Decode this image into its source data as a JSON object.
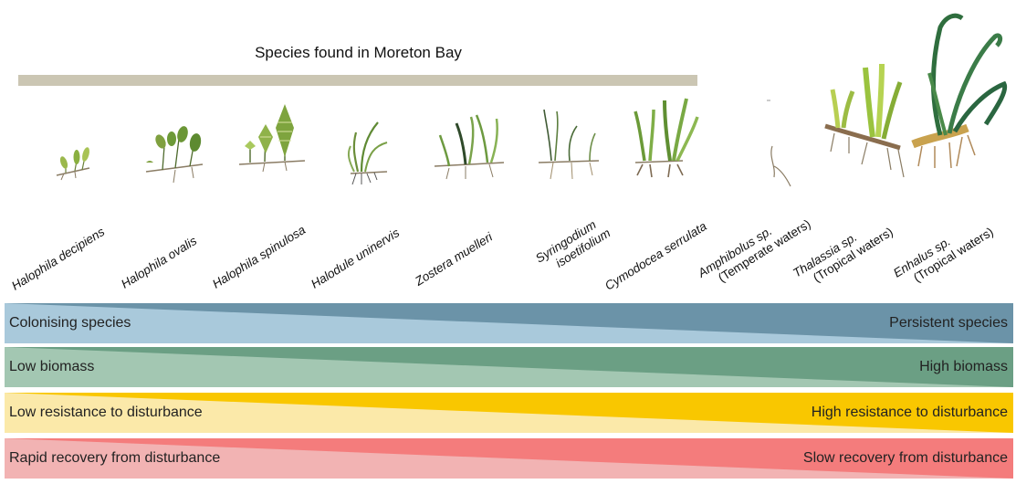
{
  "title": "Species found in Moreton Bay",
  "species": [
    {
      "name": "Halophila decipiens",
      "icon": "halophila-decipiens-icon"
    },
    {
      "name": "Halophila ovalis",
      "icon": "halophila-ovalis-icon"
    },
    {
      "name": "Halophila spinulosa",
      "icon": "halophila-spinulosa-icon"
    },
    {
      "name": "Halodule uninervis",
      "icon": "halodule-uninervis-icon"
    },
    {
      "name": "Zostera muelleri",
      "icon": "zostera-muelleri-icon"
    },
    {
      "name": "Syringodium",
      "name2": "isoetifolium",
      "icon": "syringodium-icon"
    },
    {
      "name": "Cymodocea serrulata",
      "icon": "cymodocea-serrulata-icon"
    },
    {
      "name": "Amphibolus sp.",
      "name2": "(Temperate waters)",
      "icon": "amphibolus-icon"
    },
    {
      "name": "Thalassia sp.",
      "name2": "(Tropical waters)",
      "icon": "thalassia-icon"
    },
    {
      "name": "Enhalus sp.",
      "name2": "(Tropical waters)",
      "icon": "enhalus-icon"
    }
  ],
  "bands": [
    {
      "left": "Colonising species",
      "right": "Persistent species",
      "light": "#a9c9db",
      "dark": "#6b93a8"
    },
    {
      "left": "Low biomass",
      "right": "High biomass",
      "light": "#a3c7b2",
      "dark": "#6b9f84"
    },
    {
      "left": "Low resistance to disturbance",
      "right": "High resistance to disturbance",
      "light": "#fbe9a9",
      "dark": "#f9c700"
    },
    {
      "left": "Rapid recovery from disturbance",
      "right": "Slow recovery from disturbance",
      "light": "#f2b3b3",
      "dark": "#f47c7c"
    }
  ]
}
